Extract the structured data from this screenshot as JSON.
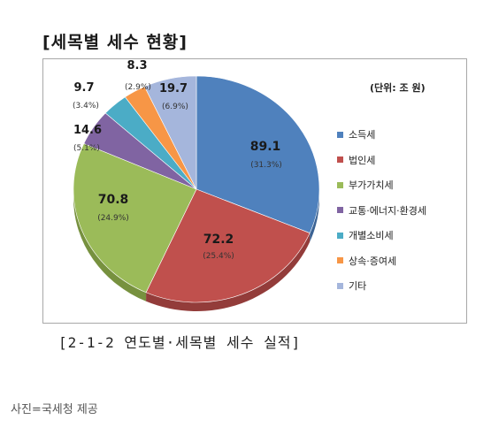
{
  "title": "[세목별 세수 현황]",
  "unit_label": "(단위: 조 원)",
  "caption": "[2-1-2 연도별·세목별 세수 실적]",
  "source": "사진=국세청 제공",
  "chart_data": {
    "type": "pie",
    "title": "",
    "unit": "(단위: 조 원)",
    "legend_position": "right",
    "categories": [
      "소득세",
      "법인세",
      "부가가치세",
      "교통·에너지·환경세",
      "개별소비세",
      "상속·증여세",
      "기타"
    ],
    "values": [
      89.1,
      72.2,
      70.8,
      14.6,
      9.7,
      8.3,
      19.7
    ],
    "percent_labels": [
      "(31.3%)",
      "(25.4%)",
      "(24.9%)",
      "(5.1%)",
      "(3.4%)",
      "(2.9%)",
      "(6.9%)"
    ],
    "value_labels": [
      "89.1",
      "72.2",
      "70.8",
      "14.6",
      "9.7",
      "8.3",
      "19.7"
    ],
    "colors": [
      "#4f81bd",
      "#c0504d",
      "#9bbb59",
      "#8064a2",
      "#4bacc6",
      "#f79646",
      "#a5b6dc"
    ],
    "shade_colors": [
      "#3b6394",
      "#933c3a",
      "#77913f",
      "#5f4a7b",
      "#37849a",
      "#c0722f",
      "#7f8eb0"
    ]
  }
}
